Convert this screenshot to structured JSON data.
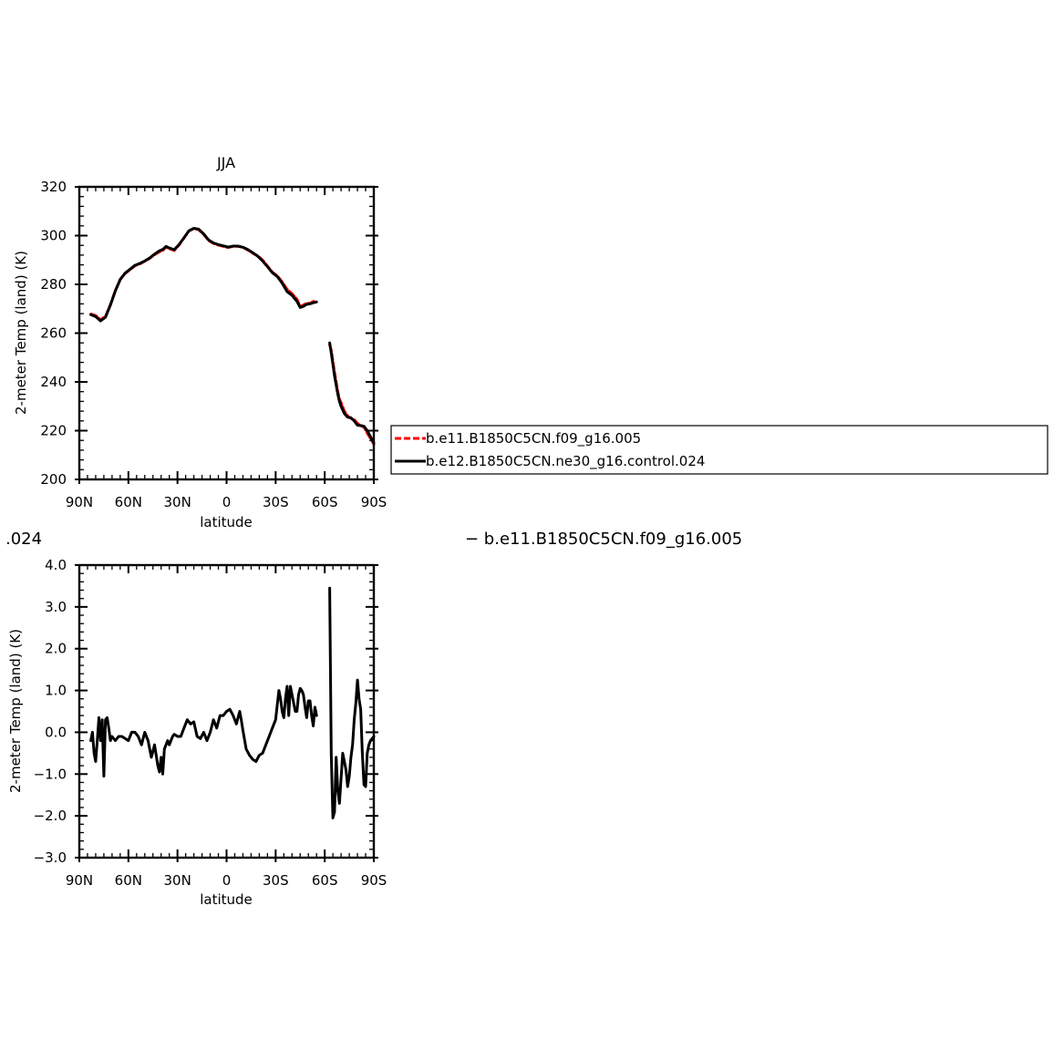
{
  "title_labels": {
    "left_fragment": ".024",
    "right_fragment": "− b.e11.B1850C5CN.f09_g16.005"
  },
  "chart_data": [
    {
      "type": "line",
      "title": "JJA",
      "xlabel": "latitude",
      "ylabel": "2-meter Temp (land) (K)",
      "x_direction": "90N on left to 90S on right (latitude in degrees, negative = south)",
      "xlim": [
        90,
        -90
      ],
      "ylim": [
        200,
        320
      ],
      "yticks": [
        200,
        220,
        240,
        260,
        280,
        300,
        320
      ],
      "yticklabels": [
        "200",
        "220",
        "240",
        "260",
        "280",
        "300",
        "320"
      ],
      "xticks": [
        90,
        60,
        30,
        0,
        -30,
        -60,
        -90
      ],
      "xticklabels": [
        "90N",
        "60N",
        "30N",
        "0",
        "30S",
        "60S",
        "90S"
      ],
      "legend_position": "right, outside plot",
      "series": [
        {
          "name": "b.e11.B1850C5CN.f09_g16.005",
          "color": "#ff0000",
          "dash": "dashed",
          "segments": [
            {
              "x": [
                83,
                80,
                77,
                74,
                71,
                68,
                65,
                62,
                59,
                56,
                53,
                50,
                47,
                44,
                41,
                39,
                37,
                35,
                32,
                29,
                26,
                23,
                20,
                17,
                14,
                11,
                8,
                5,
                2,
                -1,
                -4,
                -7,
                -10,
                -13,
                -16,
                -19,
                -22,
                -25,
                -28,
                -31,
                -34,
                -37,
                -40,
                -43,
                -45,
                -47,
                -49,
                -51,
                -53,
                -55
              ],
              "y": [
                267.8,
                267.2,
                265.5,
                266.9,
                271.7,
                277.5,
                282.0,
                284.5,
                286.0,
                287.6,
                288.4,
                289.5,
                290.7,
                292.2,
                293.4,
                293.9,
                295.3,
                294.6,
                293.9,
                296.2,
                299.0,
                301.9,
                302.9,
                302.4,
                300.5,
                298.0,
                296.8,
                296.1,
                295.6,
                295.1,
                295.6,
                295.6,
                295.2,
                294.1,
                292.8,
                291.7,
                290.0,
                287.5,
                285.0,
                283.5,
                281.0,
                278.0,
                276.2,
                273.9,
                271.0,
                271.5,
                272.3,
                272.2,
                273.0,
                273.0
              ]
            },
            {
              "x": [
                -63,
                -64,
                -66,
                -68,
                -69,
                -70,
                -72,
                -74,
                -76,
                -78,
                -80,
                -82,
                -84,
                -86,
                -88,
                -90
              ],
              "y": [
                255.2,
                253.0,
                244.0,
                236.0,
                233.0,
                231.5,
                228.0,
                226.0,
                225.0,
                224.5,
                223.0,
                222.0,
                221.5,
                219.0,
                216.8,
                214.5
              ]
            }
          ]
        },
        {
          "name": "b.e12.B1850C5CN.ne30_g16.control.024",
          "color": "#000000",
          "dash": "solid",
          "segments": [
            {
              "x": [
                83,
                80,
                77,
                74,
                71,
                68,
                65,
                62,
                59,
                56,
                53,
                50,
                47,
                44,
                41,
                39,
                37,
                35,
                32,
                29,
                26,
                23,
                20,
                17,
                14,
                11,
                8,
                5,
                2,
                -1,
                -4,
                -7,
                -10,
                -13,
                -16,
                -19,
                -22,
                -25,
                -28,
                -31,
                -34,
                -37,
                -40,
                -43,
                -45,
                -47,
                -49,
                -51,
                -53,
                -55
              ],
              "y": [
                267.6,
                266.8,
                265.0,
                266.5,
                271.5,
                277.3,
                282.0,
                284.6,
                286.2,
                287.8,
                288.6,
                289.6,
                290.8,
                292.4,
                293.8,
                294.3,
                295.6,
                294.9,
                294.2,
                296.4,
                299.1,
                302.0,
                303.0,
                302.6,
                300.7,
                298.2,
                297.0,
                296.3,
                295.8,
                295.3,
                295.7,
                295.7,
                295.2,
                294.3,
                293.0,
                291.6,
                289.6,
                287.2,
                284.8,
                283.2,
                280.5,
                277.0,
                275.5,
                273.0,
                270.5,
                271.0,
                271.8,
                272.0,
                272.5,
                272.8
              ]
            },
            {
              "x": [
                -63,
                -64,
                -66,
                -68,
                -69,
                -70,
                -72,
                -74,
                -76,
                -78,
                -80,
                -82,
                -84,
                -86,
                -88,
                -90
              ],
              "y": [
                256.0,
                252.0,
                242.5,
                235.0,
                232.0,
                230.0,
                227.0,
                225.5,
                225.3,
                224.0,
                222.2,
                222.1,
                221.8,
                220.0,
                217.5,
                215.0
              ]
            }
          ]
        }
      ]
    },
    {
      "type": "line",
      "title": "",
      "xlabel": "latitude",
      "ylabel": "2-meter Temp (land) (K)",
      "xlim": [
        90,
        -90
      ],
      "ylim": [
        -3.0,
        4.0
      ],
      "yticks": [
        -3.0,
        -2.0,
        -1.0,
        0.0,
        1.0,
        2.0,
        3.0,
        4.0
      ],
      "yticklabels": [
        "−3.0",
        "−2.0",
        "−1.0",
        "0.0",
        "1.0",
        "2.0",
        "3.0",
        "4.0"
      ],
      "xticks": [
        90,
        60,
        30,
        0,
        -30,
        -60,
        -90
      ],
      "xticklabels": [
        "90N",
        "60N",
        "30N",
        "0",
        "30S",
        "60S",
        "90S"
      ],
      "series": [
        {
          "color": "#000000",
          "dash": "solid",
          "segments": [
            {
              "x": [
                83,
                82,
                81,
                80,
                79,
                78,
                77,
                76,
                75,
                74,
                73,
                72,
                71,
                70,
                68,
                66,
                64,
                62,
                60,
                58,
                56,
                54,
                52,
                50,
                48,
                46,
                44,
                42,
                41,
                40,
                39,
                38,
                37,
                36,
                35,
                34,
                33,
                32,
                30,
                28,
                26,
                24,
                22,
                20,
                18,
                16,
                14,
                12,
                10,
                8,
                6,
                4,
                2,
                0,
                -2,
                -4,
                -6,
                -8,
                -9,
                -10,
                -12,
                -14,
                -16,
                -18,
                -20,
                -22,
                -24,
                -26,
                -28,
                -30,
                -31,
                -32,
                -33,
                -34,
                -35,
                -36,
                -37,
                -38,
                -39,
                -40,
                -41,
                -42,
                -43,
                -44,
                -45,
                -46,
                -47,
                -48,
                -49,
                -50,
                -51,
                -52,
                -53,
                -54,
                -55
              ],
              "y": [
                -0.2,
                0.0,
                -0.5,
                -0.7,
                -0.2,
                0.35,
                -0.2,
                0.3,
                -1.05,
                0.3,
                0.35,
                0.1,
                -0.2,
                -0.1,
                -0.2,
                -0.1,
                -0.1,
                -0.15,
                -0.2,
                0.0,
                0.0,
                -0.1,
                -0.3,
                0.0,
                -0.2,
                -0.6,
                -0.3,
                -0.8,
                -0.95,
                -0.6,
                -1.0,
                -0.4,
                -0.3,
                -0.2,
                -0.3,
                -0.2,
                -0.1,
                -0.05,
                -0.1,
                -0.1,
                0.1,
                0.3,
                0.2,
                0.25,
                -0.1,
                -0.15,
                0.0,
                -0.2,
                0.0,
                0.3,
                0.1,
                0.4,
                0.4,
                0.5,
                0.55,
                0.4,
                0.2,
                0.5,
                0.3,
                0.05,
                -0.4,
                -0.55,
                -0.65,
                -0.7,
                -0.55,
                -0.5,
                -0.3,
                -0.1,
                0.1,
                0.3,
                0.65,
                1.0,
                0.8,
                0.5,
                0.35,
                0.8,
                1.1,
                0.4,
                1.1,
                0.9,
                0.7,
                0.5,
                0.5,
                0.9,
                1.05,
                1.0,
                0.9,
                0.6,
                0.35,
                0.75,
                0.75,
                0.4,
                0.15,
                0.6,
                0.4
              ]
            },
            {
              "x": [
                -63,
                -64,
                -65,
                -66,
                -67,
                -68,
                -69,
                -70,
                -71,
                -72,
                -73,
                -74,
                -75,
                -76,
                -77,
                -78,
                -79,
                -80,
                -81,
                -82,
                -83,
                -84,
                -85,
                -86,
                -87,
                -88,
                -89,
                -90
              ],
              "y": [
                3.45,
                -0.5,
                -2.05,
                -1.9,
                -0.6,
                -1.4,
                -1.7,
                -1.1,
                -0.5,
                -0.7,
                -0.9,
                -1.3,
                -1.05,
                -0.6,
                -0.3,
                0.3,
                0.7,
                1.25,
                0.8,
                0.55,
                -0.5,
                -1.25,
                -1.3,
                -0.5,
                -0.3,
                -0.2,
                -0.15,
                -0.1
              ]
            }
          ]
        }
      ]
    }
  ]
}
